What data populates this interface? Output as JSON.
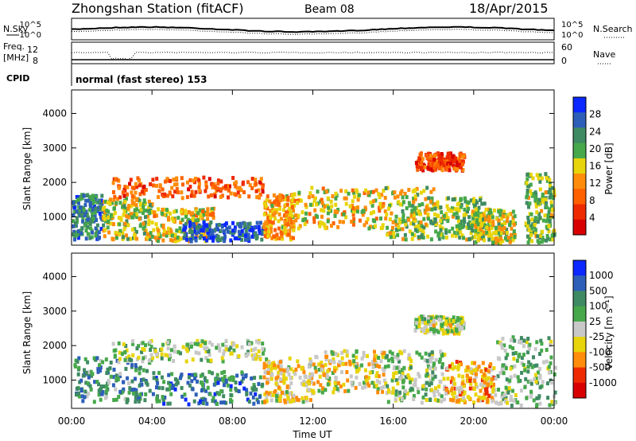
{
  "header": {
    "title": "Zhongshan Station (fitACF)",
    "beam": "Beam 08",
    "date": "18/Apr/2015"
  },
  "noise_panel": {
    "left_label": "N.Sky",
    "left_ticks": [
      "10^5",
      "10^0"
    ],
    "right_label": "N.Search",
    "right_ticks": [
      "10^5",
      "10^0"
    ]
  },
  "freq_panel": {
    "left_label_1": "Freq.",
    "left_label_2": "[MHz]",
    "left_ticks": [
      "12",
      "8"
    ],
    "right_label": "Nave",
    "right_ticks": [
      "60",
      "0"
    ]
  },
  "cpid": {
    "label": "CPID",
    "text": "normal (fast stereo) 153"
  },
  "colors": {
    "power": [
      "#0a28ff",
      "#2d5fb8",
      "#3f8a63",
      "#46a84a",
      "#e8d40a",
      "#ff8c0a",
      "#ff6000",
      "#ee2a00",
      "#d80000"
    ],
    "velocity": [
      "#0a28ff",
      "#2d5fb8",
      "#3f8a63",
      "#46a84a",
      "#c8c8c8",
      "#e8d40a",
      "#ff8c0a",
      "#ee2a00",
      "#d80000"
    ]
  },
  "chart_data": [
    {
      "type": "heatmap",
      "name": "power",
      "ylabel": "Slant Range [km]",
      "yticks": [
        1000,
        2000,
        3000,
        4000
      ],
      "ylim": [
        180,
        4680
      ],
      "colorbar_label": "Power [dB]",
      "colorbar_ticks": [
        "28",
        "24",
        "20",
        "16",
        "12",
        "8",
        "4"
      ],
      "colorbar_range": [
        0,
        30
      ],
      "scatter_regions": [
        {
          "x": [
            0.0,
            1.5
          ],
          "y": [
            400,
            1700
          ],
          "value": 22
        },
        {
          "x": [
            1.5,
            4.0
          ],
          "y": [
            400,
            1600
          ],
          "value": 16
        },
        {
          "x": [
            4.0,
            7.0
          ],
          "y": [
            350,
            1300
          ],
          "value": 14
        },
        {
          "x": [
            5.5,
            9.5
          ],
          "y": [
            350,
            900
          ],
          "value": 26
        },
        {
          "x": [
            2.0,
            9.5
          ],
          "y": [
            1600,
            2200
          ],
          "value": 8
        },
        {
          "x": [
            9.5,
            11.0
          ],
          "y": [
            400,
            1700
          ],
          "value": 12
        },
        {
          "x": [
            11.0,
            15.5
          ],
          "y": [
            700,
            1900
          ],
          "value": 14
        },
        {
          "x": [
            15.5,
            18.0
          ],
          "y": [
            400,
            1900
          ],
          "value": 16
        },
        {
          "x": [
            18.0,
            20.5
          ],
          "y": [
            400,
            1600
          ],
          "value": 18
        },
        {
          "x": [
            17.0,
            19.5
          ],
          "y": [
            2400,
            2900
          ],
          "value": 6
        },
        {
          "x": [
            22.5,
            24.0
          ],
          "y": [
            300,
            2300
          ],
          "value": 18
        },
        {
          "x": [
            20.0,
            22.0
          ],
          "y": [
            300,
            1300
          ],
          "value": 16
        }
      ]
    },
    {
      "type": "heatmap",
      "name": "velocity",
      "xlabel": "Time UT",
      "ylabel": "Slant Range [km]",
      "yticks": [
        1000,
        2000,
        3000,
        4000
      ],
      "ylim": [
        180,
        4680
      ],
      "xticks": [
        "00:00",
        "04:00",
        "08:00",
        "12:00",
        "16:00",
        "20:00",
        "00:00"
      ],
      "xlim": [
        0,
        24
      ],
      "colorbar_label": "Velocity [m s⁻¹]",
      "colorbar_ticks": [
        "1000",
        "500",
        "100",
        "25",
        "-25",
        "-100",
        "-500",
        "-1000"
      ],
      "colorbar_range": [
        -1000,
        1000
      ],
      "scatter_regions": [
        {
          "x": [
            0.0,
            4.0
          ],
          "y": [
            400,
            1700
          ],
          "value": 400
        },
        {
          "x": [
            4.0,
            9.5
          ],
          "y": [
            350,
            1300
          ],
          "value": 500
        },
        {
          "x": [
            2.0,
            9.5
          ],
          "y": [
            1600,
            2200
          ],
          "value": 50
        },
        {
          "x": [
            9.5,
            12.0
          ],
          "y": [
            400,
            1700
          ],
          "value": -200
        },
        {
          "x": [
            12.0,
            15.5
          ],
          "y": [
            700,
            1900
          ],
          "value": -150
        },
        {
          "x": [
            15.5,
            18.5
          ],
          "y": [
            400,
            1900
          ],
          "value": 100
        },
        {
          "x": [
            17.0,
            19.5
          ],
          "y": [
            2400,
            2900
          ],
          "value": 0
        },
        {
          "x": [
            18.5,
            21.0
          ],
          "y": [
            400,
            1600
          ],
          "value": -300
        },
        {
          "x": [
            21.0,
            24.0
          ],
          "y": [
            300,
            2300
          ],
          "value": 150
        }
      ]
    }
  ]
}
